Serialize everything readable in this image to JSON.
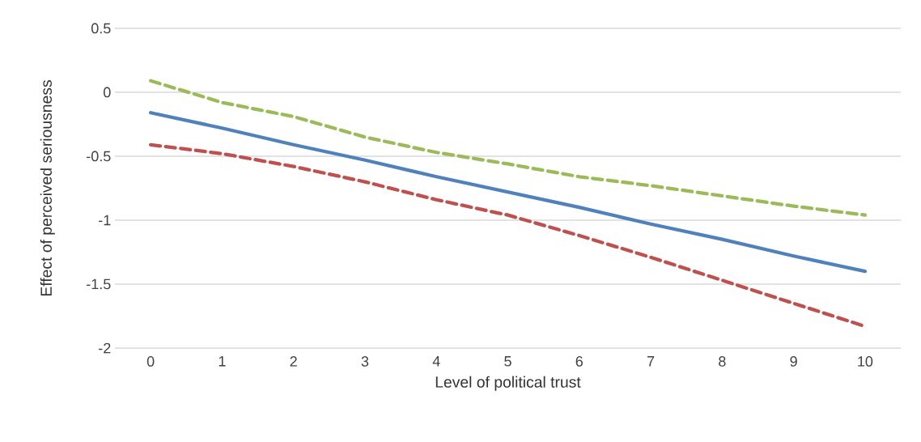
{
  "chart_data": {
    "type": "line",
    "xlabel": "Level of political trust",
    "ylabel": "Effect of perceived seriousness",
    "categories": [
      "0",
      "1",
      "2",
      "3",
      "4",
      "5",
      "6",
      "7",
      "8",
      "9",
      "10"
    ],
    "series": [
      {
        "color": "#4f81bd",
        "line_style": "solid",
        "values": [
          -0.16,
          -0.28,
          -0.41,
          -0.53,
          -0.66,
          -0.78,
          -0.9,
          -1.03,
          -1.15,
          -1.28,
          -1.4
        ]
      },
      {
        "color": "#9bbb59",
        "line_style": "dashed",
        "values": [
          0.09,
          -0.08,
          -0.19,
          -0.35,
          -0.47,
          -0.56,
          -0.66,
          -0.73,
          -0.81,
          -0.89,
          -0.96
        ]
      },
      {
        "color": "#c0504d",
        "line_style": "dashed",
        "values": [
          -0.41,
          -0.48,
          -0.58,
          -0.7,
          -0.84,
          -0.96,
          -1.12,
          -1.29,
          -1.47,
          -1.65,
          -1.83
        ]
      }
    ],
    "ylim": [
      -2,
      0.5
    ],
    "yticks": [
      -2,
      -1.5,
      -1,
      -0.5,
      0,
      0.5
    ],
    "grid": "y",
    "marker": "none"
  }
}
